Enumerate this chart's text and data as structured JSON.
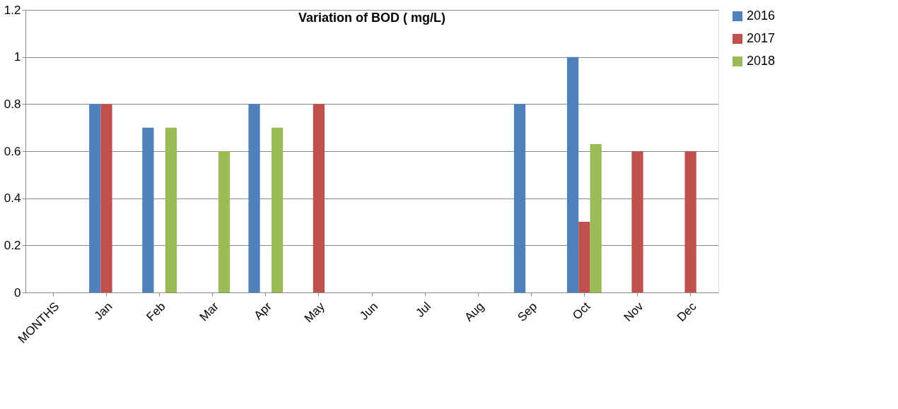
{
  "chart_data": {
    "type": "bar",
    "title": "Variation of BOD ( mg/L)",
    "categories": [
      "MONTHS",
      "Jan",
      "Feb",
      "Mar",
      "Apr",
      "May",
      "Jun",
      "Jul",
      "Aug",
      "Sep",
      "Oct",
      "Nov",
      "Dec"
    ],
    "series": [
      {
        "name": "2016",
        "color": "#4f81bd",
        "values": [
          null,
          0.8,
          0.7,
          null,
          0.8,
          null,
          null,
          null,
          null,
          0.8,
          1.0,
          null,
          null
        ]
      },
      {
        "name": "2017",
        "color": "#c0504d",
        "values": [
          null,
          0.8,
          null,
          null,
          null,
          0.8,
          null,
          null,
          null,
          null,
          0.3,
          0.6,
          0.6
        ]
      },
      {
        "name": "2018",
        "color": "#9bbb59",
        "values": [
          null,
          null,
          0.7,
          0.6,
          0.7,
          null,
          null,
          null,
          null,
          null,
          0.63,
          null,
          null
        ]
      }
    ],
    "ylim": [
      0,
      1.2
    ],
    "yticks": [
      0,
      0.2,
      0.4,
      0.6,
      0.8,
      1,
      1.2
    ],
    "grid": "y",
    "legend": "right"
  }
}
